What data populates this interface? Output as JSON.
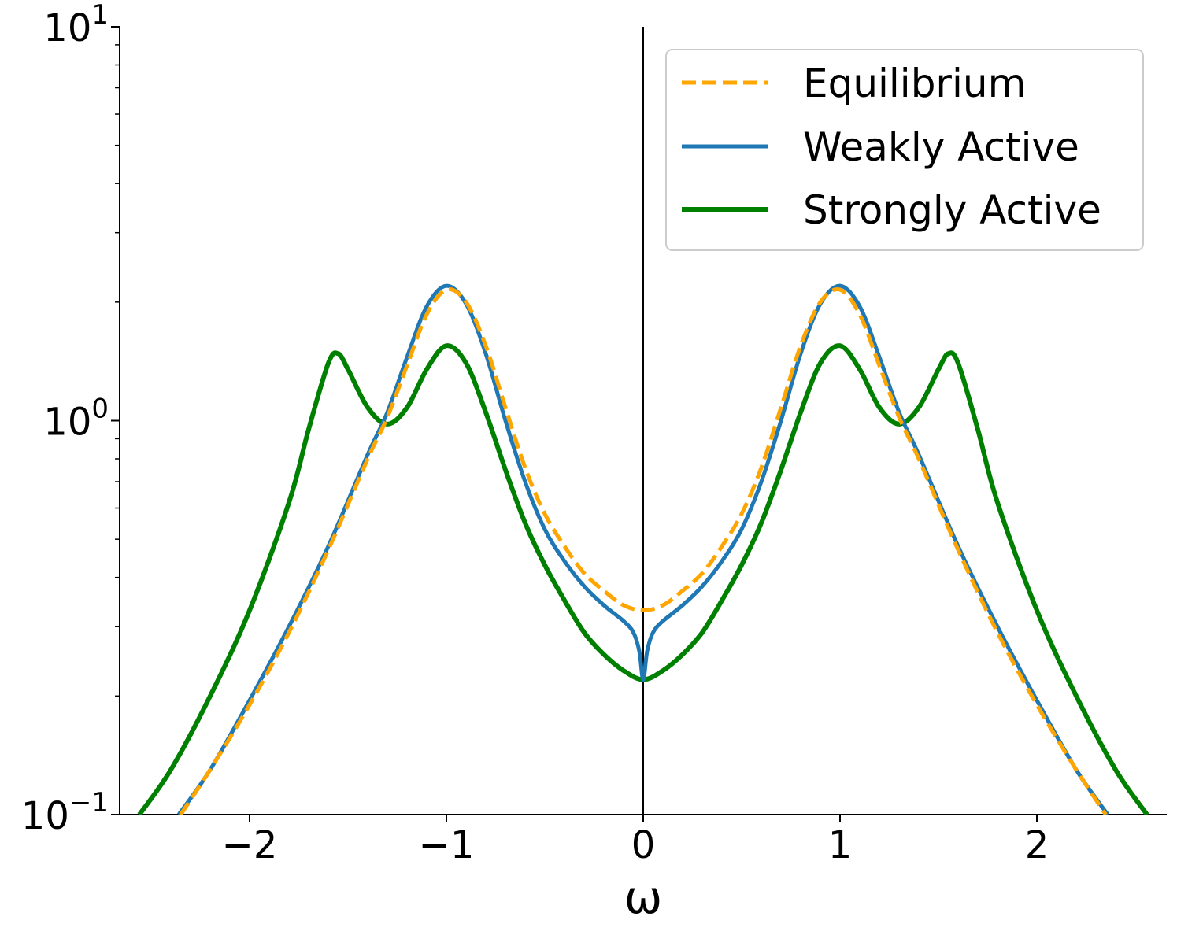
{
  "chart_data": {
    "type": "line",
    "xlabel": "ω",
    "ylabel": "",
    "xlim": [
      -2.6,
      2.65
    ],
    "ylim": [
      0.1,
      10
    ],
    "yscale": "log",
    "grid": false,
    "legend_position": "top-right",
    "x_ticks": [
      {
        "value": -2,
        "label": "−2"
      },
      {
        "value": -1,
        "label": "−1"
      },
      {
        "value": 0,
        "label": "0"
      },
      {
        "value": 1,
        "label": "1"
      },
      {
        "value": 2,
        "label": "2"
      }
    ],
    "y_ticks": [
      {
        "value": 0.1,
        "base": "10",
        "exp": "−1"
      },
      {
        "value": 1,
        "base": "10",
        "exp": "0"
      },
      {
        "value": 10,
        "base": "10",
        "exp": "1"
      }
    ],
    "series": [
      {
        "name": "Equilibrium",
        "color": "#FFA500",
        "style": "dashed",
        "points": [
          [
            -2.35,
            0.1
          ],
          [
            -2.2,
            0.13
          ],
          [
            -2.0,
            0.19
          ],
          [
            -1.8,
            0.29
          ],
          [
            -1.6,
            0.47
          ],
          [
            -1.4,
            0.8
          ],
          [
            -1.3,
            1.02
          ],
          [
            -1.2,
            1.38
          ],
          [
            -1.1,
            1.86
          ],
          [
            -1.0,
            2.15
          ],
          [
            -0.9,
            2.0
          ],
          [
            -0.8,
            1.55
          ],
          [
            -0.7,
            1.08
          ],
          [
            -0.6,
            0.76
          ],
          [
            -0.5,
            0.58
          ],
          [
            -0.4,
            0.48
          ],
          [
            -0.3,
            0.41
          ],
          [
            -0.2,
            0.37
          ],
          [
            -0.1,
            0.34
          ],
          [
            0.0,
            0.33
          ],
          [
            0.1,
            0.34
          ],
          [
            0.2,
            0.37
          ],
          [
            0.3,
            0.41
          ],
          [
            0.4,
            0.48
          ],
          [
            0.5,
            0.58
          ],
          [
            0.6,
            0.76
          ],
          [
            0.7,
            1.08
          ],
          [
            0.8,
            1.55
          ],
          [
            0.9,
            2.0
          ],
          [
            1.0,
            2.15
          ],
          [
            1.1,
            1.86
          ],
          [
            1.2,
            1.38
          ],
          [
            1.3,
            1.02
          ],
          [
            1.4,
            0.8
          ],
          [
            1.6,
            0.47
          ],
          [
            1.8,
            0.29
          ],
          [
            2.0,
            0.19
          ],
          [
            2.2,
            0.13
          ],
          [
            2.35,
            0.1
          ]
        ]
      },
      {
        "name": "Weakly Active",
        "color": "#1F77B4",
        "style": "solid",
        "points": [
          [
            -2.36,
            0.1
          ],
          [
            -2.2,
            0.13
          ],
          [
            -2.0,
            0.195
          ],
          [
            -1.8,
            0.3
          ],
          [
            -1.6,
            0.48
          ],
          [
            -1.4,
            0.82
          ],
          [
            -1.3,
            1.05
          ],
          [
            -1.2,
            1.45
          ],
          [
            -1.1,
            1.95
          ],
          [
            -1.0,
            2.2
          ],
          [
            -0.9,
            1.98
          ],
          [
            -0.8,
            1.48
          ],
          [
            -0.7,
            1.0
          ],
          [
            -0.6,
            0.7
          ],
          [
            -0.5,
            0.53
          ],
          [
            -0.4,
            0.44
          ],
          [
            -0.3,
            0.38
          ],
          [
            -0.2,
            0.34
          ],
          [
            -0.1,
            0.31
          ],
          [
            -0.05,
            0.29
          ],
          [
            -0.02,
            0.26
          ],
          [
            0.0,
            0.22
          ],
          [
            0.02,
            0.26
          ],
          [
            0.05,
            0.29
          ],
          [
            0.1,
            0.31
          ],
          [
            0.2,
            0.34
          ],
          [
            0.3,
            0.38
          ],
          [
            0.4,
            0.44
          ],
          [
            0.5,
            0.53
          ],
          [
            0.6,
            0.7
          ],
          [
            0.7,
            1.0
          ],
          [
            0.8,
            1.48
          ],
          [
            0.9,
            1.98
          ],
          [
            1.0,
            2.2
          ],
          [
            1.1,
            1.95
          ],
          [
            1.2,
            1.45
          ],
          [
            1.3,
            1.05
          ],
          [
            1.4,
            0.82
          ],
          [
            1.6,
            0.48
          ],
          [
            1.8,
            0.3
          ],
          [
            2.0,
            0.195
          ],
          [
            2.2,
            0.13
          ],
          [
            2.36,
            0.1
          ]
        ]
      },
      {
        "name": "Strongly Active",
        "color": "#008000",
        "style": "solid",
        "points": [
          [
            -2.56,
            0.1
          ],
          [
            -2.4,
            0.13
          ],
          [
            -2.2,
            0.2
          ],
          [
            -2.0,
            0.33
          ],
          [
            -1.8,
            0.62
          ],
          [
            -1.7,
            0.95
          ],
          [
            -1.6,
            1.4
          ],
          [
            -1.55,
            1.48
          ],
          [
            -1.5,
            1.35
          ],
          [
            -1.4,
            1.08
          ],
          [
            -1.3,
            0.98
          ],
          [
            -1.2,
            1.08
          ],
          [
            -1.1,
            1.35
          ],
          [
            -1.0,
            1.55
          ],
          [
            -0.9,
            1.4
          ],
          [
            -0.8,
            1.05
          ],
          [
            -0.7,
            0.75
          ],
          [
            -0.6,
            0.55
          ],
          [
            -0.5,
            0.43
          ],
          [
            -0.4,
            0.35
          ],
          [
            -0.3,
            0.29
          ],
          [
            -0.2,
            0.255
          ],
          [
            -0.1,
            0.232
          ],
          [
            0.0,
            0.22
          ],
          [
            0.1,
            0.232
          ],
          [
            0.2,
            0.255
          ],
          [
            0.3,
            0.29
          ],
          [
            0.4,
            0.35
          ],
          [
            0.5,
            0.43
          ],
          [
            0.6,
            0.55
          ],
          [
            0.7,
            0.75
          ],
          [
            0.8,
            1.05
          ],
          [
            0.9,
            1.4
          ],
          [
            1.0,
            1.55
          ],
          [
            1.1,
            1.35
          ],
          [
            1.2,
            1.08
          ],
          [
            1.3,
            0.98
          ],
          [
            1.4,
            1.08
          ],
          [
            1.5,
            1.35
          ],
          [
            1.55,
            1.48
          ],
          [
            1.6,
            1.4
          ],
          [
            1.7,
            0.95
          ],
          [
            1.8,
            0.62
          ],
          [
            2.0,
            0.33
          ],
          [
            2.2,
            0.2
          ],
          [
            2.4,
            0.13
          ],
          [
            2.56,
            0.1
          ]
        ]
      }
    ]
  }
}
